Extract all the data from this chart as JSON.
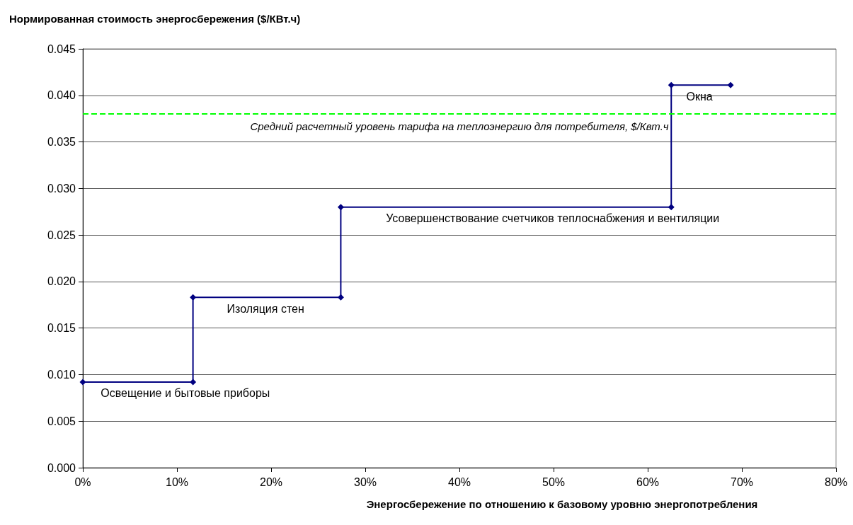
{
  "chart_data": {
    "type": "line",
    "title": "Нормированная стоимость энергосбережения ($/КВт.ч)",
    "xlabel": "Энергосбережение по отношению к базовому уровню энергопотребления",
    "series": [
      {
        "color": "#000080",
        "x": [
          0,
          11.7,
          11.7,
          27.4,
          27.4,
          62.5,
          62.5,
          68.8
        ],
        "values": [
          0.0092,
          0.0092,
          0.0183,
          0.0183,
          0.028,
          0.028,
          0.0411,
          0.0411
        ]
      }
    ],
    "xlim": [
      0,
      80
    ],
    "xticks": [
      {
        "value": 0,
        "label": "0%"
      },
      {
        "value": 10,
        "label": "10%"
      },
      {
        "value": 20,
        "label": "20%"
      },
      {
        "value": 30,
        "label": "30%"
      },
      {
        "value": 40,
        "label": "40%"
      },
      {
        "value": 50,
        "label": "50%"
      },
      {
        "value": 60,
        "label": "60%"
      },
      {
        "value": 70,
        "label": "70%"
      },
      {
        "value": 80,
        "label": "80%"
      }
    ],
    "ylim": [
      0,
      0.045
    ],
    "yticks": [
      {
        "value": 0,
        "label": "0.000"
      },
      {
        "value": 0.005,
        "label": "0.005"
      },
      {
        "value": 0.01,
        "label": "0.010"
      },
      {
        "value": 0.015,
        "label": "0.015"
      },
      {
        "value": 0.02,
        "label": "0.020"
      },
      {
        "value": 0.025,
        "label": "0.025"
      },
      {
        "value": 0.03,
        "label": "0.030"
      },
      {
        "value": 0.035,
        "label": "0.035"
      },
      {
        "value": 0.04,
        "label": "0.040"
      },
      {
        "value": 0.045,
        "label": "0.045"
      }
    ],
    "ref_lines": [
      {
        "axis": "y",
        "value": 0.038,
        "label": "Средний расчетный уровень тарифа на теплоэнергию для потребителя, $/Квт.ч",
        "color": "#00ff00",
        "line_style": "dashed"
      }
    ],
    "annotations": [
      {
        "text": "Освещение и бытовые приборы",
        "x": 1.9,
        "y": 0.0092
      },
      {
        "text": "Изоляция стен",
        "x": 15.3,
        "y": 0.0183
      },
      {
        "text": "Усовершенствование счетчиков теплоснабжения и вентиляции",
        "x": 32.2,
        "y": 0.028
      },
      {
        "text": "Окна",
        "x": 64.1,
        "y": 0.0411
      }
    ],
    "grid": "y",
    "marker": "diamond",
    "line_style": "solid"
  }
}
